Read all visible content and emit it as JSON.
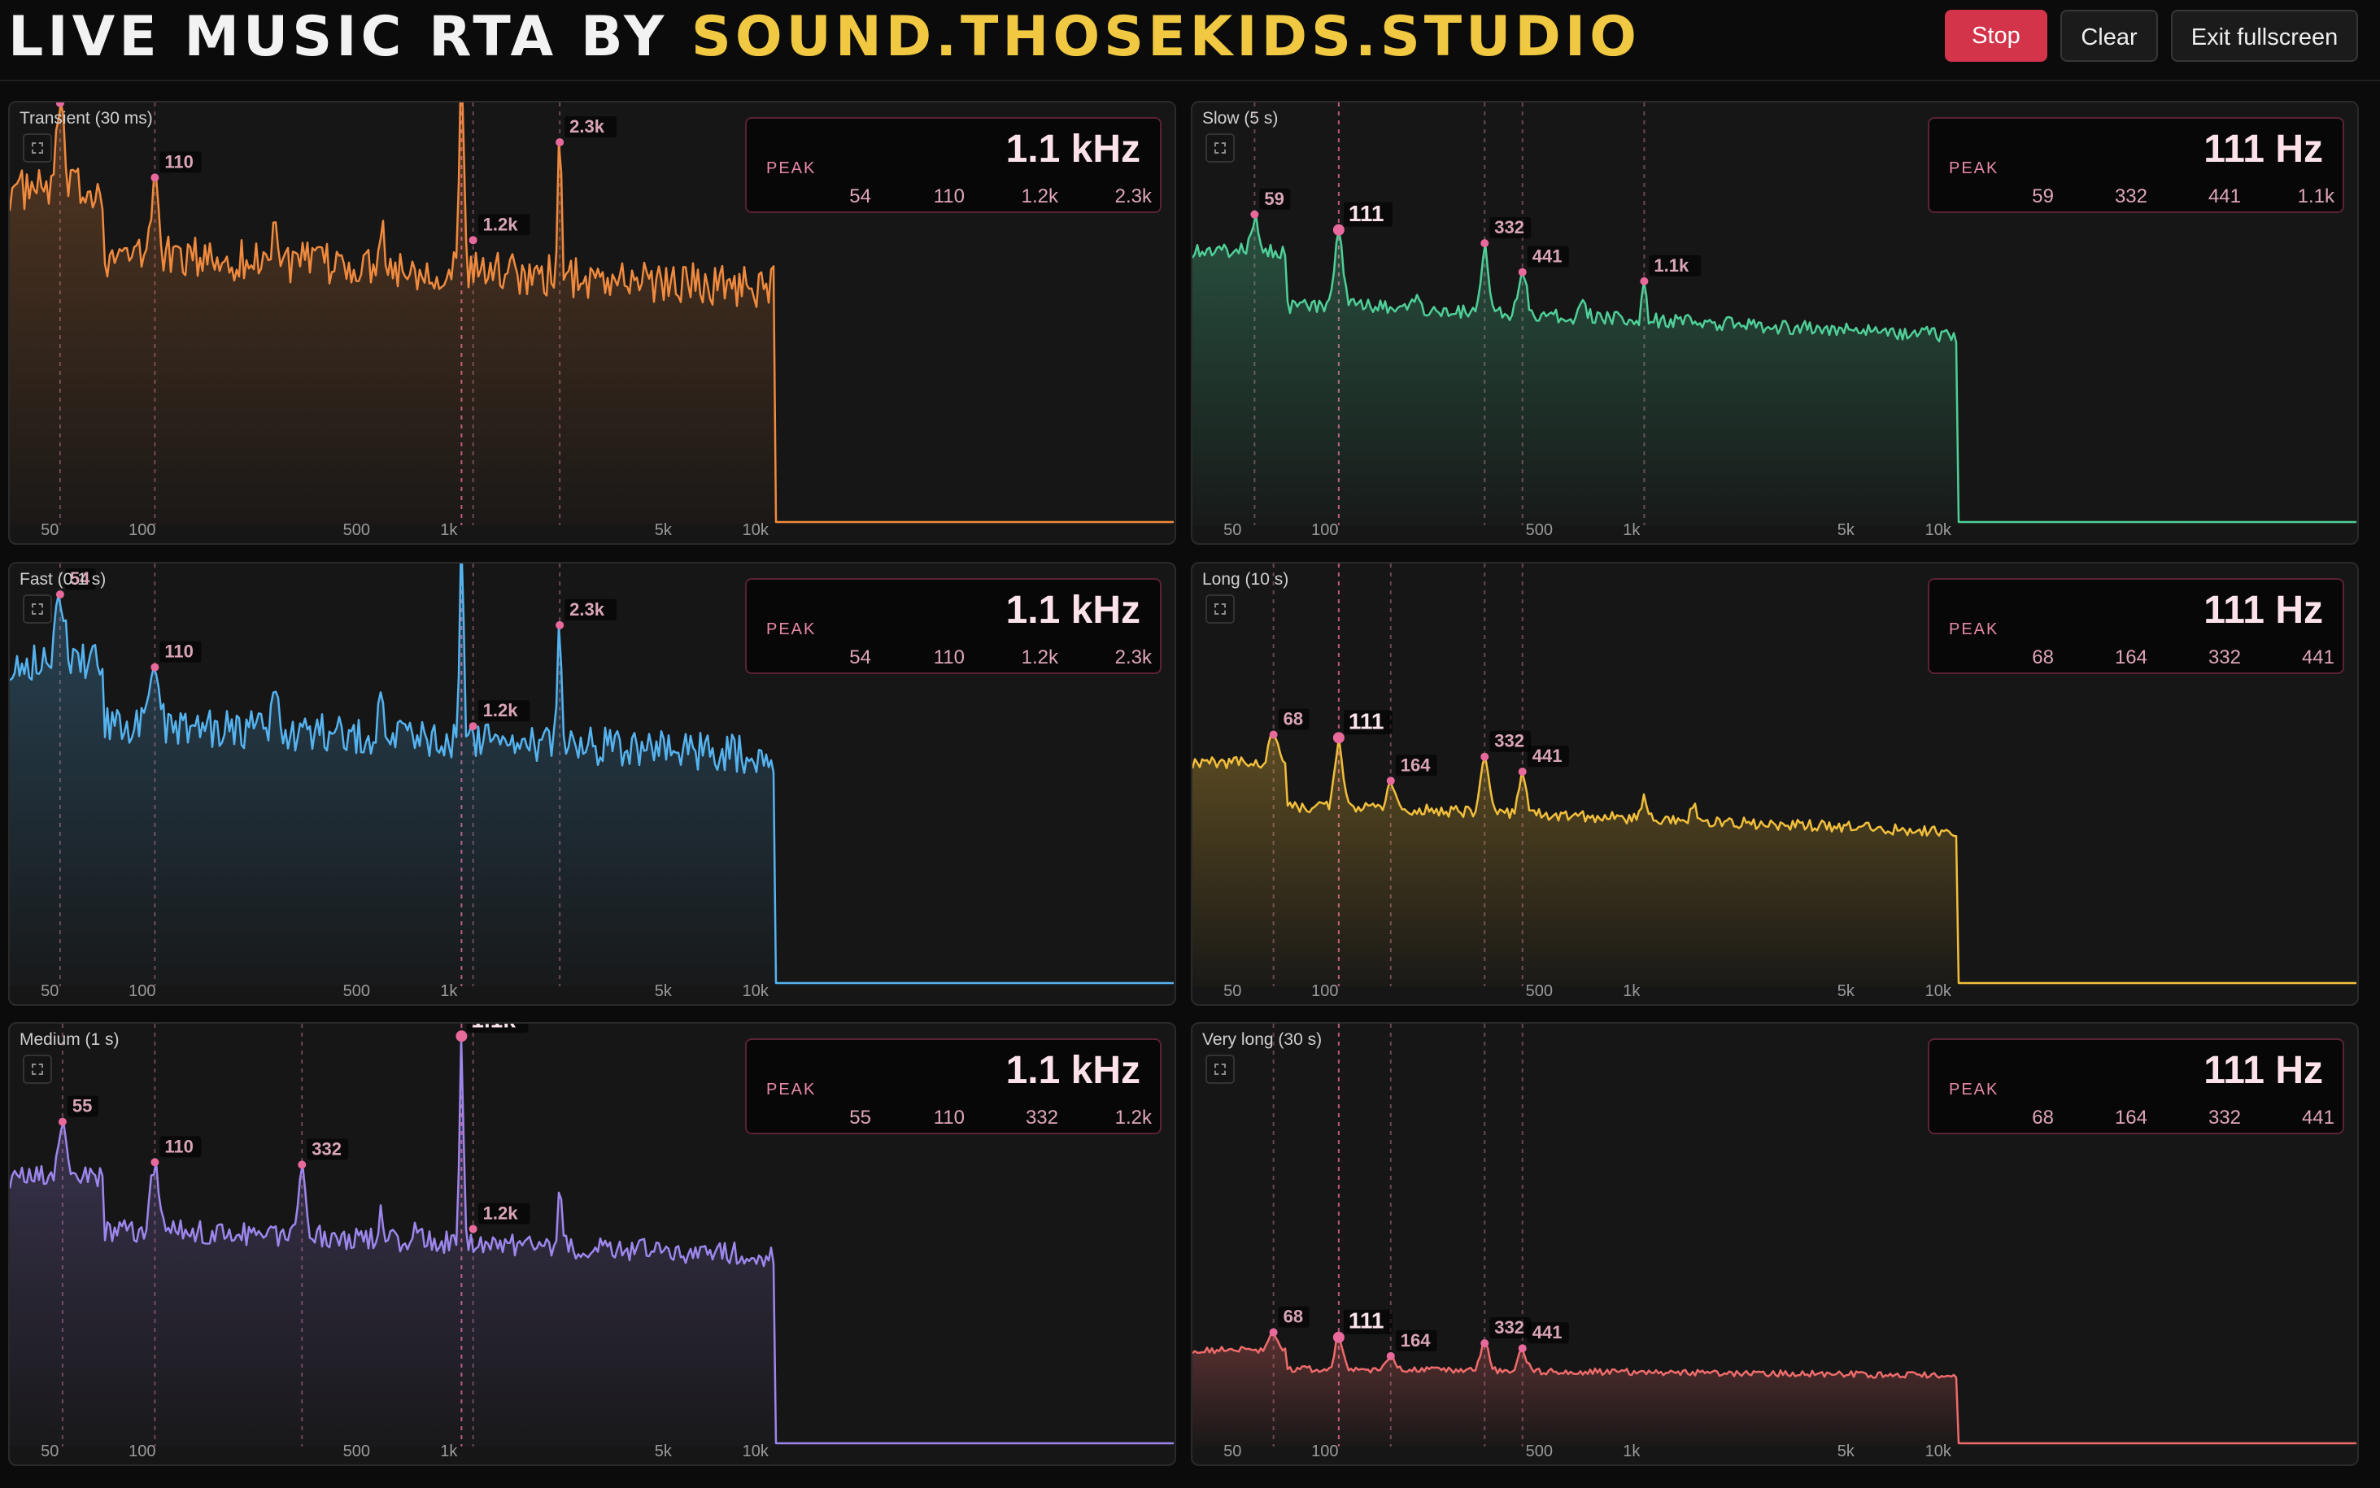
{
  "header": {
    "title_prefix": "LIVE MUSIC RTA BY ",
    "title_brand": "SOUND.THOSEKIDS.STUDIO",
    "stop_label": "Stop",
    "clear_label": "Clear",
    "exit_label": "Exit fullscreen"
  },
  "peak_label": "PEAK",
  "chart_data": [
    {
      "type": "area",
      "title": "Transient (30 ms)",
      "color": "#f08a3e",
      "xscale": "log",
      "x_ticks": [
        "50",
        "100",
        "500",
        "1k",
        "5k",
        "10k"
      ],
      "peak_value": "1.1 kHz",
      "peaks": [
        "54",
        "110",
        "1.2k",
        "2.3k"
      ],
      "markers": [
        {
          "f": 54,
          "label": "54",
          "major": false
        },
        {
          "f": 110,
          "label": "110",
          "major": false
        },
        {
          "f": 1100,
          "label": "1.1k",
          "major": true
        },
        {
          "f": 1200,
          "label": "1.2k",
          "major": false
        },
        {
          "f": 2300,
          "label": "2.3k",
          "major": false
        }
      ]
    },
    {
      "type": "area",
      "title": "Slow (5 s)",
      "color": "#4fcf98",
      "xscale": "log",
      "x_ticks": [
        "50",
        "100",
        "500",
        "1k",
        "5k",
        "10k"
      ],
      "peak_value": "111 Hz",
      "peaks": [
        "59",
        "332",
        "441",
        "1.1k"
      ],
      "markers": [
        {
          "f": 59,
          "label": "59",
          "major": false
        },
        {
          "f": 111,
          "label": "111",
          "major": true
        },
        {
          "f": 332,
          "label": "332",
          "major": false
        },
        {
          "f": 441,
          "label": "441",
          "major": false
        },
        {
          "f": 1100,
          "label": "1.1k",
          "major": false
        }
      ]
    },
    {
      "type": "area",
      "title": "Fast (0.1 s)",
      "color": "#55b3f0",
      "xscale": "log",
      "x_ticks": [
        "50",
        "100",
        "500",
        "1k",
        "5k",
        "10k"
      ],
      "peak_value": "1.1 kHz",
      "peaks": [
        "54",
        "110",
        "1.2k",
        "2.3k"
      ],
      "markers": [
        {
          "f": 54,
          "label": "54",
          "major": false
        },
        {
          "f": 110,
          "label": "110",
          "major": false
        },
        {
          "f": 1100,
          "label": "1.1k",
          "major": true
        },
        {
          "f": 1200,
          "label": "1.2k",
          "major": false
        },
        {
          "f": 2300,
          "label": "2.3k",
          "major": false
        }
      ]
    },
    {
      "type": "area",
      "title": "Long (10 s)",
      "color": "#f2bf3c",
      "xscale": "log",
      "x_ticks": [
        "50",
        "100",
        "500",
        "1k",
        "5k",
        "10k"
      ],
      "peak_value": "111 Hz",
      "peaks": [
        "68",
        "164",
        "332",
        "441"
      ],
      "markers": [
        {
          "f": 68,
          "label": "68",
          "major": false
        },
        {
          "f": 111,
          "label": "111",
          "major": true
        },
        {
          "f": 164,
          "label": "164",
          "major": false
        },
        {
          "f": 332,
          "label": "332",
          "major": false
        },
        {
          "f": 441,
          "label": "441",
          "major": false
        }
      ]
    },
    {
      "type": "area",
      "title": "Medium (1 s)",
      "color": "#9d86ec",
      "xscale": "log",
      "x_ticks": [
        "50",
        "100",
        "500",
        "1k",
        "5k",
        "10k"
      ],
      "peak_value": "1.1 kHz",
      "peaks": [
        "55",
        "110",
        "332",
        "1.2k"
      ],
      "markers": [
        {
          "f": 55,
          "label": "55",
          "major": false
        },
        {
          "f": 110,
          "label": "110",
          "major": false
        },
        {
          "f": 332,
          "label": "332",
          "major": false
        },
        {
          "f": 1100,
          "label": "1.1k",
          "major": true
        },
        {
          "f": 1200,
          "label": "1.2k",
          "major": false
        }
      ]
    },
    {
      "type": "area",
      "title": "Very long (30 s)",
      "color": "#ef6b6b",
      "xscale": "log",
      "x_ticks": [
        "50",
        "100",
        "500",
        "1k",
        "5k",
        "10k"
      ],
      "peak_value": "111 Hz",
      "peaks": [
        "68",
        "164",
        "332",
        "441"
      ],
      "markers": [
        {
          "f": 68,
          "label": "68",
          "major": false
        },
        {
          "f": 111,
          "label": "111",
          "major": true
        },
        {
          "f": 164,
          "label": "164",
          "major": false
        },
        {
          "f": 332,
          "label": "332",
          "major": false
        },
        {
          "f": 441,
          "label": "441",
          "major": false
        }
      ]
    }
  ]
}
